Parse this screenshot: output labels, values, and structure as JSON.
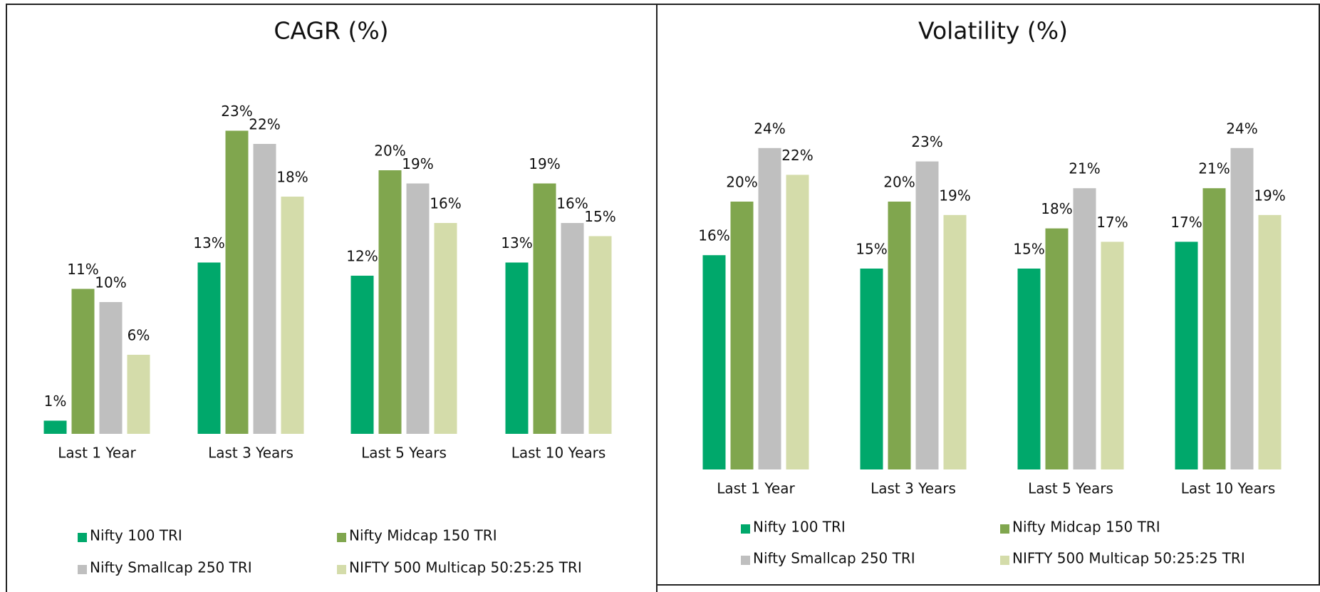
{
  "chart_data": [
    {
      "type": "bar",
      "title": "CAGR (%)",
      "categories": [
        "Last 1 Year",
        "Last 3 Years",
        "Last 5 Years",
        "Last 10 Years"
      ],
      "series": [
        {
          "name": "Nifty 100 TRI",
          "color": "#00a86b",
          "values": [
            1,
            13,
            12,
            13
          ],
          "value_labels": [
            "1%",
            "13%",
            "12%",
            "13%"
          ]
        },
        {
          "name": "Nifty Midcap 150 TRI",
          "color": "#80a64e",
          "values": [
            11,
            23,
            20,
            19
          ],
          "value_labels": [
            "11%",
            "23%",
            "20%",
            "19%"
          ]
        },
        {
          "name": "Nifty Smallcap 250 TRI",
          "color": "#bfbfbf",
          "values": [
            10,
            22,
            19,
            16
          ],
          "value_labels": [
            "10%",
            "22%",
            "19%",
            "16%"
          ]
        },
        {
          "name": "NIFTY 500 Multicap 50:25:25 TRI",
          "color": "#d4dcaa",
          "values": [
            6,
            18,
            16,
            15
          ],
          "value_labels": [
            "6%",
            "18%",
            "16%",
            "15%"
          ]
        }
      ]
    },
    {
      "type": "bar",
      "title": "Volatility (%)",
      "categories": [
        "Last 1 Year",
        "Last 3 Years",
        "Last 5 Years",
        "Last 10 Years"
      ],
      "series": [
        {
          "name": "Nifty 100 TRI",
          "color": "#00a86b",
          "values": [
            16,
            15,
            15,
            17
          ],
          "value_labels": [
            "16%",
            "15%",
            "15%",
            "17%"
          ]
        },
        {
          "name": "Nifty Midcap 150 TRI",
          "color": "#80a64e",
          "values": [
            20,
            20,
            18,
            21
          ],
          "value_labels": [
            "20%",
            "20%",
            "18%",
            "21%"
          ]
        },
        {
          "name": "Nifty Smallcap 250 TRI",
          "color": "#bfbfbf",
          "values": [
            24,
            23,
            21,
            24
          ],
          "value_labels": [
            "24%",
            "23%",
            "21%",
            "24%"
          ]
        },
        {
          "name": "NIFTY 500 Multicap 50:25:25 TRI",
          "color": "#d4dcaa",
          "values": [
            22,
            19,
            17,
            19
          ],
          "value_labels": [
            "22%",
            "19%",
            "17%",
            "19%"
          ]
        }
      ]
    }
  ]
}
